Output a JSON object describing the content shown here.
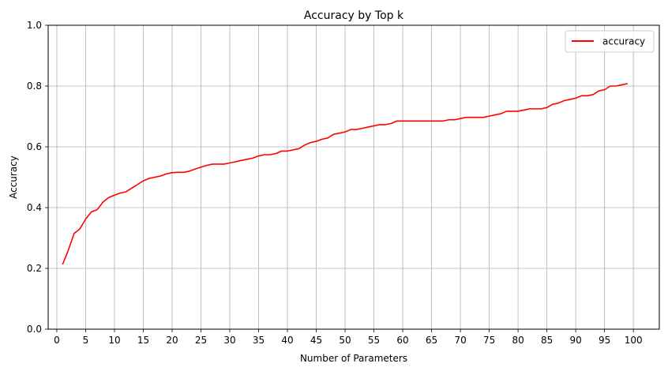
{
  "chart_data": {
    "type": "line",
    "title": "Accuracy by Top k",
    "xlabel": "Number of Parameters",
    "ylabel": "Accuracy",
    "xlim": [
      -1.5,
      104.5
    ],
    "ylim": [
      0,
      1
    ],
    "xticks": [
      0,
      5,
      10,
      15,
      20,
      25,
      30,
      35,
      40,
      45,
      50,
      55,
      60,
      65,
      70,
      75,
      80,
      85,
      90,
      95,
      100
    ],
    "yticks": [
      0.0,
      0.2,
      0.4,
      0.6,
      0.8,
      1.0
    ],
    "ytick_labels": [
      "0.0",
      "0.2",
      "0.4",
      "0.6",
      "0.8",
      "1.0"
    ],
    "grid": true,
    "legend_position": "top-right",
    "series": [
      {
        "name": "accuracy",
        "color": "#ff0000",
        "x": [
          1,
          2,
          3,
          4,
          5,
          6,
          7,
          8,
          9,
          10,
          11,
          12,
          13,
          14,
          15,
          16,
          17,
          18,
          19,
          20,
          21,
          22,
          23,
          24,
          25,
          26,
          27,
          28,
          29,
          30,
          31,
          32,
          33,
          34,
          35,
          36,
          37,
          38,
          39,
          40,
          41,
          42,
          43,
          44,
          45,
          46,
          47,
          48,
          49,
          50,
          51,
          52,
          53,
          54,
          55,
          56,
          57,
          58,
          59,
          60,
          61,
          62,
          63,
          64,
          65,
          66,
          67,
          68,
          69,
          70,
          71,
          72,
          73,
          74,
          75,
          76,
          77,
          78,
          79,
          80,
          81,
          82,
          83,
          84,
          85,
          86,
          87,
          88,
          89,
          90,
          91,
          92,
          93,
          94,
          95,
          96,
          97,
          98,
          99
        ],
        "y": [
          0.213,
          0.26,
          0.315,
          0.33,
          0.362,
          0.386,
          0.393,
          0.418,
          0.433,
          0.441,
          0.448,
          0.452,
          0.464,
          0.476,
          0.488,
          0.496,
          0.5,
          0.504,
          0.511,
          0.515,
          0.516,
          0.516,
          0.52,
          0.527,
          0.533,
          0.539,
          0.543,
          0.543,
          0.543,
          0.547,
          0.551,
          0.555,
          0.559,
          0.563,
          0.57,
          0.574,
          0.574,
          0.578,
          0.586,
          0.586,
          0.59,
          0.594,
          0.606,
          0.614,
          0.618,
          0.625,
          0.629,
          0.641,
          0.645,
          0.649,
          0.657,
          0.657,
          0.661,
          0.665,
          0.669,
          0.673,
          0.673,
          0.677,
          0.685,
          0.685,
          0.685,
          0.685,
          0.685,
          0.685,
          0.685,
          0.685,
          0.685,
          0.689,
          0.689,
          0.693,
          0.697,
          0.697,
          0.697,
          0.697,
          0.701,
          0.705,
          0.709,
          0.717,
          0.717,
          0.717,
          0.721,
          0.725,
          0.725,
          0.725,
          0.729,
          0.74,
          0.744,
          0.752,
          0.756,
          0.76,
          0.768,
          0.768,
          0.772,
          0.784,
          0.788,
          0.8,
          0.8,
          0.804,
          0.808
        ]
      }
    ]
  }
}
